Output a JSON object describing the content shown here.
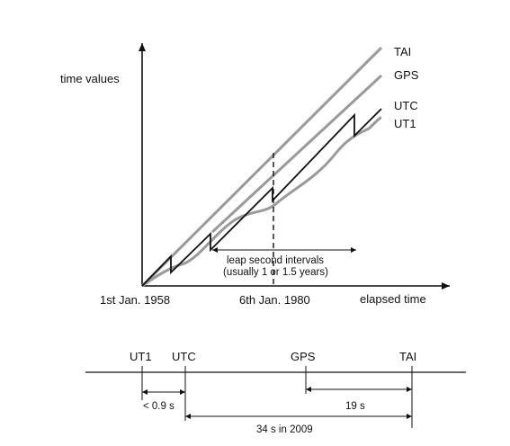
{
  "graph": {
    "y_axis_label": "time values",
    "x_axis_label": "elapsed time",
    "start_date": "1st Jan. 1958",
    "gps_epoch": "6th Jan. 1980",
    "series": {
      "tai": {
        "name": "TAI",
        "color": "#9a9a9a"
      },
      "gps": {
        "name": "GPS",
        "color": "#9a9a9a"
      },
      "utc": {
        "name": "UTC",
        "color": "#111111"
      },
      "ut1": {
        "name": "UT1",
        "color": "#9a9a9a"
      }
    },
    "interval_note_line1": "leap second intervals",
    "interval_note_line2": "(usually 1 or 1.5 years)"
  },
  "offsets": {
    "scale_labels": {
      "ut1": "UT1",
      "utc": "UTC",
      "gps": "GPS",
      "tai": "TAI"
    },
    "ut1_utc": "< 0.9 s",
    "gps_tai": "19 s",
    "utc_tai": "34 s in 2009"
  }
}
